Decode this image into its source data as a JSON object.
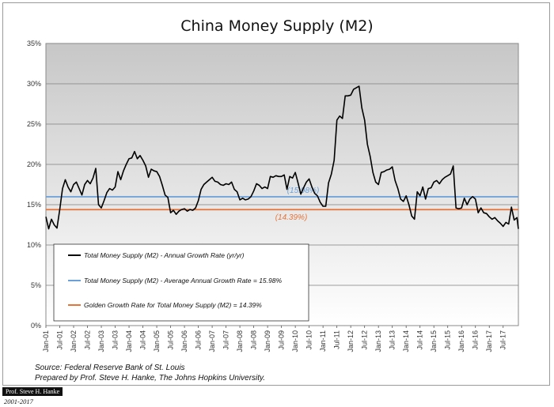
{
  "chart_data": {
    "type": "line",
    "title": "China Money Supply (M2)",
    "ylim": [
      0,
      35
    ],
    "ytick_labels": [
      "0%",
      "5%",
      "10%",
      "15%",
      "20%",
      "25%",
      "30%",
      "35%"
    ],
    "ytick_values": [
      0,
      5,
      10,
      15,
      20,
      25,
      30,
      35
    ],
    "xlim": [
      2001.0,
      2018.05
    ],
    "x_tick_labels": [
      "Jan-01",
      "Jul-01",
      "Jan-02",
      "Jul-02",
      "Jan-03",
      "Jul-03",
      "Jan-04",
      "Jul-04",
      "Jan-05",
      "Jul-05",
      "Jan-06",
      "Jul-06",
      "Jan-07",
      "Jul-07",
      "Jan-08",
      "Jul-08",
      "Jan-09",
      "Jul-09",
      "Jan-10",
      "Jul-10",
      "Jan-11",
      "Jul-11",
      "Jan-12",
      "Jul-12",
      "Jan-13",
      "Jul-13",
      "Jan-14",
      "Jul-14",
      "Jan-15",
      "Jul-15",
      "Jan-16",
      "Jul-16",
      "Jan-17",
      "Jul-17"
    ],
    "x_tick_values": [
      2001.0,
      2001.5,
      2002.0,
      2002.5,
      2003.0,
      2003.5,
      2004.0,
      2004.5,
      2005.0,
      2005.5,
      2006.0,
      2006.5,
      2007.0,
      2007.5,
      2008.0,
      2008.5,
      2009.0,
      2009.5,
      2010.0,
      2010.5,
      2011.0,
      2011.5,
      2012.0,
      2012.5,
      2013.0,
      2013.5,
      2014.0,
      2014.5,
      2015.0,
      2015.5,
      2016.0,
      2016.5,
      2017.0,
      2017.5
    ],
    "grid": true,
    "series": [
      {
        "name": "Total Money Supply (M2) - Annual Growth Rate (yr/yr)",
        "color": "#000000",
        "points": [
          [
            2001.0,
            13.5
          ],
          [
            2001.1,
            12.0
          ],
          [
            2001.2,
            13.2
          ],
          [
            2001.3,
            12.5
          ],
          [
            2001.4,
            12.1
          ],
          [
            2001.5,
            14.4
          ],
          [
            2001.6,
            17.0
          ],
          [
            2001.7,
            18.1
          ],
          [
            2001.8,
            17.2
          ],
          [
            2001.9,
            16.6
          ],
          [
            2002.0,
            17.5
          ],
          [
            2002.1,
            17.8
          ],
          [
            2002.2,
            17.0
          ],
          [
            2002.3,
            16.2
          ],
          [
            2002.4,
            17.5
          ],
          [
            2002.5,
            18.0
          ],
          [
            2002.6,
            17.6
          ],
          [
            2002.7,
            18.3
          ],
          [
            2002.8,
            19.5
          ],
          [
            2002.9,
            15.0
          ],
          [
            2003.0,
            14.6
          ],
          [
            2003.1,
            15.5
          ],
          [
            2003.2,
            16.5
          ],
          [
            2003.3,
            17.0
          ],
          [
            2003.4,
            16.8
          ],
          [
            2003.5,
            17.2
          ],
          [
            2003.6,
            19.1
          ],
          [
            2003.7,
            18.1
          ],
          [
            2003.8,
            19.2
          ],
          [
            2003.9,
            20.0
          ],
          [
            2004.0,
            20.7
          ],
          [
            2004.1,
            20.8
          ],
          [
            2004.2,
            21.6
          ],
          [
            2004.3,
            20.7
          ],
          [
            2004.4,
            21.1
          ],
          [
            2004.5,
            20.5
          ],
          [
            2004.6,
            19.8
          ],
          [
            2004.7,
            18.4
          ],
          [
            2004.8,
            19.4
          ],
          [
            2004.9,
            19.2
          ],
          [
            2005.0,
            19.1
          ],
          [
            2005.1,
            18.5
          ],
          [
            2005.2,
            17.4
          ],
          [
            2005.3,
            16.2
          ],
          [
            2005.4,
            15.9
          ],
          [
            2005.5,
            14.0
          ],
          [
            2005.6,
            14.3
          ],
          [
            2005.7,
            13.8
          ],
          [
            2005.8,
            14.2
          ],
          [
            2005.9,
            14.4
          ],
          [
            2006.0,
            14.5
          ],
          [
            2006.1,
            14.2
          ],
          [
            2006.2,
            14.4
          ],
          [
            2006.3,
            14.3
          ],
          [
            2006.4,
            14.6
          ],
          [
            2006.5,
            15.5
          ],
          [
            2006.6,
            16.9
          ],
          [
            2006.7,
            17.5
          ],
          [
            2006.8,
            17.8
          ],
          [
            2006.9,
            18.1
          ],
          [
            2007.0,
            18.4
          ],
          [
            2007.1,
            17.9
          ],
          [
            2007.2,
            17.8
          ],
          [
            2007.3,
            17.5
          ],
          [
            2007.4,
            17.4
          ],
          [
            2007.5,
            17.6
          ],
          [
            2007.6,
            17.5
          ],
          [
            2007.7,
            17.8
          ],
          [
            2007.8,
            16.9
          ],
          [
            2007.9,
            16.6
          ],
          [
            2008.0,
            15.6
          ],
          [
            2008.1,
            15.8
          ],
          [
            2008.2,
            15.6
          ],
          [
            2008.3,
            15.7
          ],
          [
            2008.4,
            16.0
          ],
          [
            2008.5,
            16.7
          ],
          [
            2008.6,
            17.6
          ],
          [
            2008.7,
            17.4
          ],
          [
            2008.8,
            17.0
          ],
          [
            2008.9,
            17.2
          ],
          [
            2009.0,
            17.0
          ],
          [
            2009.1,
            18.5
          ],
          [
            2009.2,
            18.4
          ],
          [
            2009.3,
            18.6
          ],
          [
            2009.4,
            18.5
          ],
          [
            2009.5,
            18.5
          ],
          [
            2009.6,
            18.7
          ],
          [
            2009.7,
            16.9
          ],
          [
            2009.8,
            18.5
          ],
          [
            2009.9,
            18.3
          ],
          [
            2010.0,
            19.0
          ],
          [
            2010.1,
            17.7
          ],
          [
            2010.2,
            16.3
          ],
          [
            2010.3,
            17.1
          ],
          [
            2010.4,
            17.8
          ],
          [
            2010.5,
            18.2
          ],
          [
            2010.6,
            17.2
          ],
          [
            2010.7,
            16.4
          ],
          [
            2010.8,
            16.1
          ],
          [
            2010.9,
            15.3
          ],
          [
            2011.0,
            14.8
          ],
          [
            2011.1,
            14.8
          ],
          [
            2011.2,
            17.7
          ],
          [
            2011.3,
            18.8
          ],
          [
            2011.4,
            20.5
          ],
          [
            2011.5,
            25.5
          ],
          [
            2011.6,
            26.0
          ],
          [
            2011.7,
            25.7
          ],
          [
            2011.8,
            28.5
          ],
          [
            2011.9,
            28.5
          ],
          [
            2012.0,
            28.6
          ],
          [
            2012.1,
            29.3
          ],
          [
            2012.2,
            29.5
          ],
          [
            2012.3,
            29.7
          ],
          [
            2012.4,
            27.0
          ],
          [
            2012.5,
            25.5
          ],
          [
            2012.6,
            22.5
          ],
          [
            2012.7,
            21.0
          ],
          [
            2012.8,
            19.0
          ],
          [
            2012.9,
            17.8
          ],
          [
            2013.0,
            17.5
          ],
          [
            2013.1,
            19.0
          ],
          [
            2013.2,
            19.1
          ],
          [
            2013.3,
            19.3
          ],
          [
            2013.4,
            19.4
          ],
          [
            2013.5,
            19.7
          ],
          [
            2013.6,
            18.0
          ],
          [
            2013.7,
            17.0
          ],
          [
            2013.8,
            15.7
          ],
          [
            2013.9,
            15.4
          ],
          [
            2014.0,
            16.1
          ],
          [
            2014.1,
            15.0
          ],
          [
            2014.2,
            13.6
          ],
          [
            2014.3,
            13.2
          ],
          [
            2014.4,
            16.6
          ],
          [
            2014.5,
            16.1
          ],
          [
            2014.6,
            17.2
          ],
          [
            2014.7,
            15.7
          ],
          [
            2014.8,
            17.0
          ],
          [
            2014.9,
            17.1
          ],
          [
            2015.0,
            17.8
          ],
          [
            2015.1,
            18.0
          ],
          [
            2015.2,
            17.6
          ],
          [
            2015.3,
            18.1
          ],
          [
            2015.4,
            18.4
          ],
          [
            2015.5,
            18.6
          ],
          [
            2015.6,
            18.8
          ],
          [
            2015.7,
            19.8
          ],
          [
            2015.8,
            14.6
          ],
          [
            2015.9,
            14.5
          ],
          [
            2016.0,
            14.6
          ],
          [
            2016.1,
            15.8
          ],
          [
            2016.2,
            15.0
          ],
          [
            2016.3,
            15.7
          ],
          [
            2016.4,
            16.0
          ],
          [
            2016.5,
            15.7
          ],
          [
            2016.6,
            14.0
          ],
          [
            2016.7,
            14.6
          ],
          [
            2016.8,
            14.0
          ],
          [
            2016.9,
            13.9
          ],
          [
            2017.0,
            13.5
          ],
          [
            2017.1,
            13.2
          ],
          [
            2017.2,
            13.4
          ],
          [
            2017.3,
            13.0
          ],
          [
            2017.4,
            12.7
          ],
          [
            2017.5,
            12.3
          ],
          [
            2017.6,
            12.8
          ],
          [
            2017.7,
            12.6
          ],
          [
            2017.8,
            14.7
          ],
          [
            2017.9,
            13.1
          ],
          [
            2018.0,
            13.4
          ],
          [
            2018.05,
            12.0
          ]
        ]
      }
    ],
    "hlines": [
      {
        "name": "Total Money Supply (M2) - Average Annual Growth Rate = 15.98%",
        "value": 15.98,
        "label": "(15.98%)",
        "color": "#6a9fd8"
      },
      {
        "name": "Golden Growth Rate for Total Money Supply (M2) = 14.39%",
        "value": 14.39,
        "label": "(14.39%)",
        "color": "#e5743a"
      }
    ],
    "legend": [
      "Total Money Supply (M2) - Annual Growth Rate (yr/yr)",
      "Total Money Supply (M2) - Average Annual Growth Rate = 15.98%",
      "Golden Growth Rate for Total Money Supply (M2) = 14.39%"
    ],
    "legend_position": "bottom-left"
  },
  "footnotes": {
    "source": "Source: Federal Reserve Bank of St. Louis",
    "prepared": "Prepared by Prof. Steve H. Hanke, The Johns Hopkins University."
  },
  "credit_badge": "Prof. Steve H. Hanke",
  "date_range": "2001-2017"
}
